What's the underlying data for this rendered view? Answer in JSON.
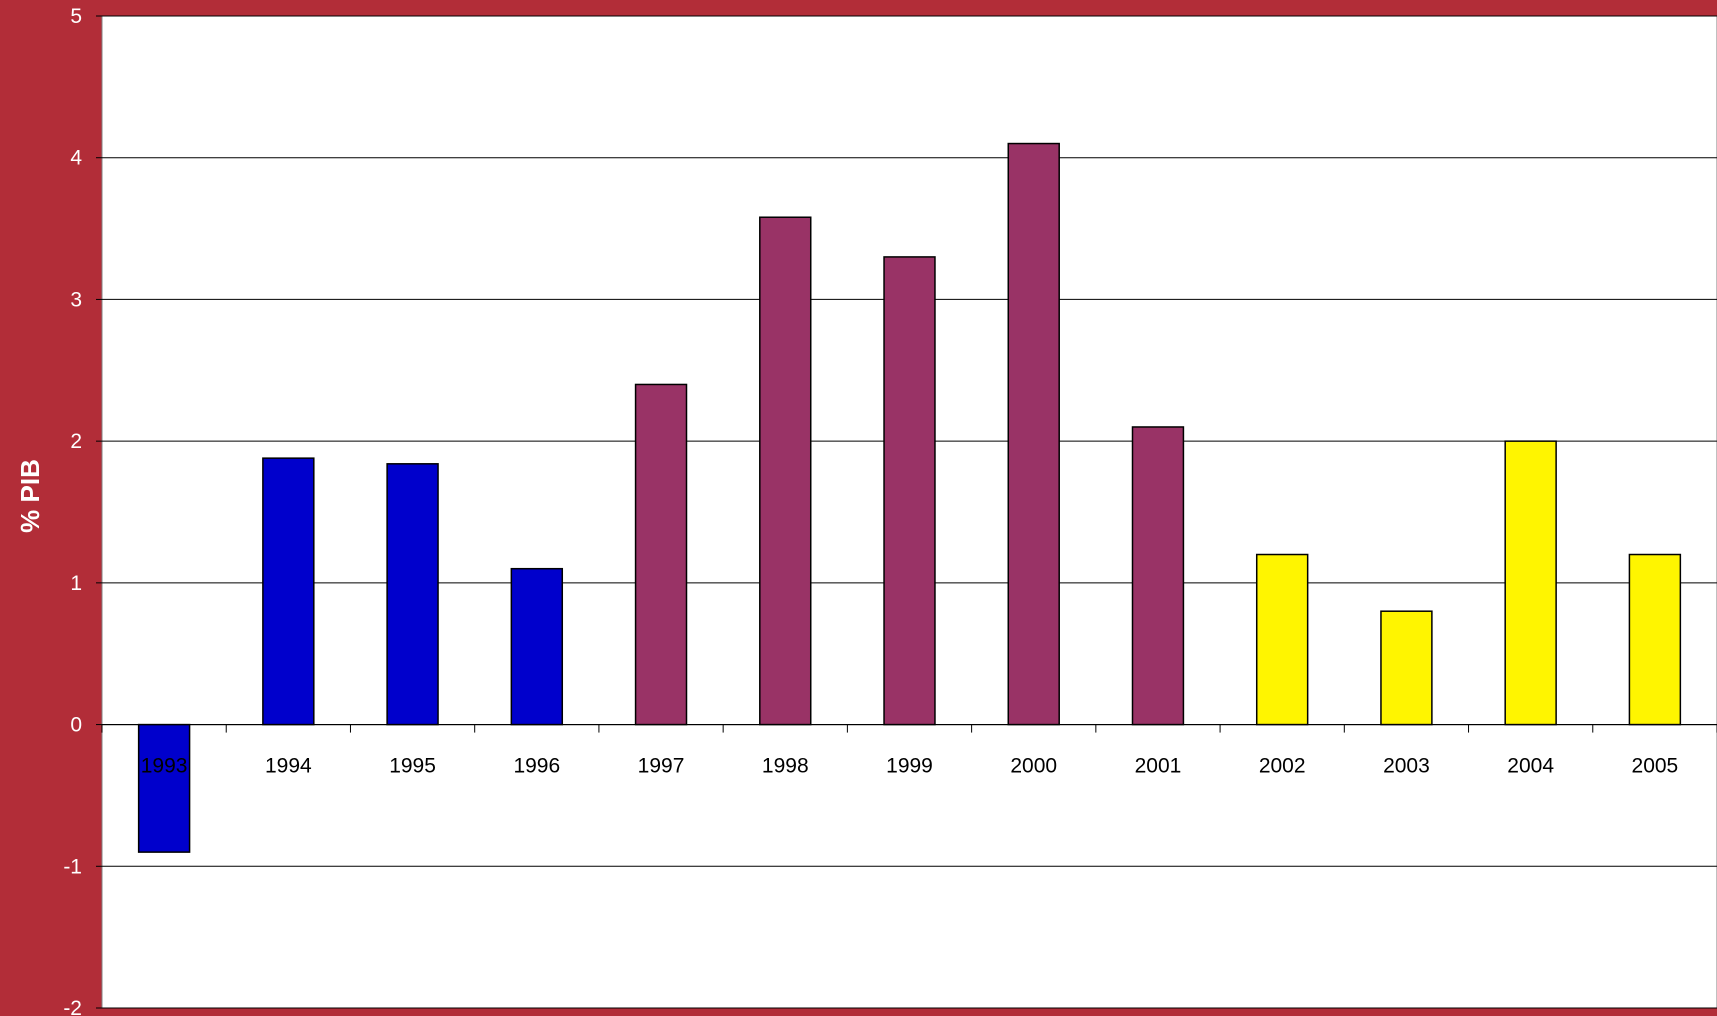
{
  "colors": {
    "background": "#B22D38",
    "plot_area": "#FFFFFF",
    "gridline": "#000000"
  },
  "chart_data": {
    "type": "bar",
    "title": "",
    "xlabel": "",
    "ylabel": "% PIB",
    "ylim": [
      -2,
      5
    ],
    "yticks": [
      -2,
      -1,
      0,
      1,
      2,
      3,
      4,
      5
    ],
    "grid": true,
    "legend": "none",
    "categories": [
      "1993",
      "1994",
      "1995",
      "1996",
      "1997",
      "1998",
      "1999",
      "2000",
      "2001",
      "2002",
      "2003",
      "2004",
      "2005"
    ],
    "values": [
      -0.9,
      1.88,
      1.84,
      1.1,
      2.4,
      3.58,
      3.3,
      4.1,
      2.1,
      1.2,
      0.8,
      2.0,
      1.2
    ],
    "bar_colors": [
      "#0000CC",
      "#0000CC",
      "#0000CC",
      "#0000CC",
      "#993366",
      "#993366",
      "#993366",
      "#993366",
      "#993366",
      "#FFF500",
      "#FFF500",
      "#FFF500",
      "#FFF500"
    ]
  }
}
